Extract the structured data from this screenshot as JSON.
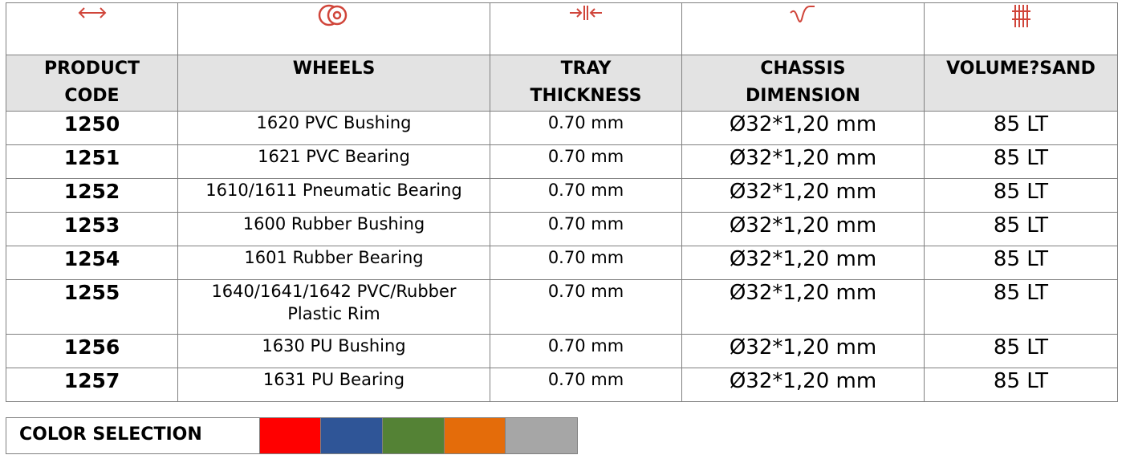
{
  "table": {
    "headers": [
      "PRODUCT CODE",
      "WHEELS",
      "TRAY THICKNESS",
      "CHASSIS DIMENSION",
      "VOLUME?SAND"
    ],
    "rows": [
      [
        "1250",
        "1620 PVC Bushing",
        "0.70 mm",
        "Ø32*1,20 mm",
        "85 LT"
      ],
      [
        "1251",
        "1621 PVC Bearing",
        "0.70 mm",
        "Ø32*1,20 mm",
        "85 LT"
      ],
      [
        "1252",
        "1610/1611 Pneumatic Bearing",
        "0.70 mm",
        "Ø32*1,20 mm",
        "85 LT"
      ],
      [
        "1253",
        "1600 Rubber Bushing",
        "0.70 mm",
        "Ø32*1,20 mm",
        "85 LT"
      ],
      [
        "1254",
        "1601 Rubber Bearing",
        "0.70 mm",
        "Ø32*1,20 mm",
        "85 LT"
      ],
      [
        "1255",
        "1640/1641/1642 PVC/Rubber Plastic Rim",
        "0.70 mm",
        "Ø32*1,20 mm",
        "85 LT"
      ],
      [
        "1256",
        "1630 PU Bushing",
        "0.70 mm",
        "Ø32*1,20 mm",
        "85 LT"
      ],
      [
        "1257",
        "1631 PU Bearing",
        "0.70 mm",
        "Ø32*1,20 mm",
        "85 LT"
      ]
    ]
  },
  "color_selection": {
    "label": "COLOR SELECTION",
    "colors": [
      "#ff0000",
      "#2f5597",
      "#548235",
      "#e46c0a",
      "#a6a6a6"
    ]
  }
}
